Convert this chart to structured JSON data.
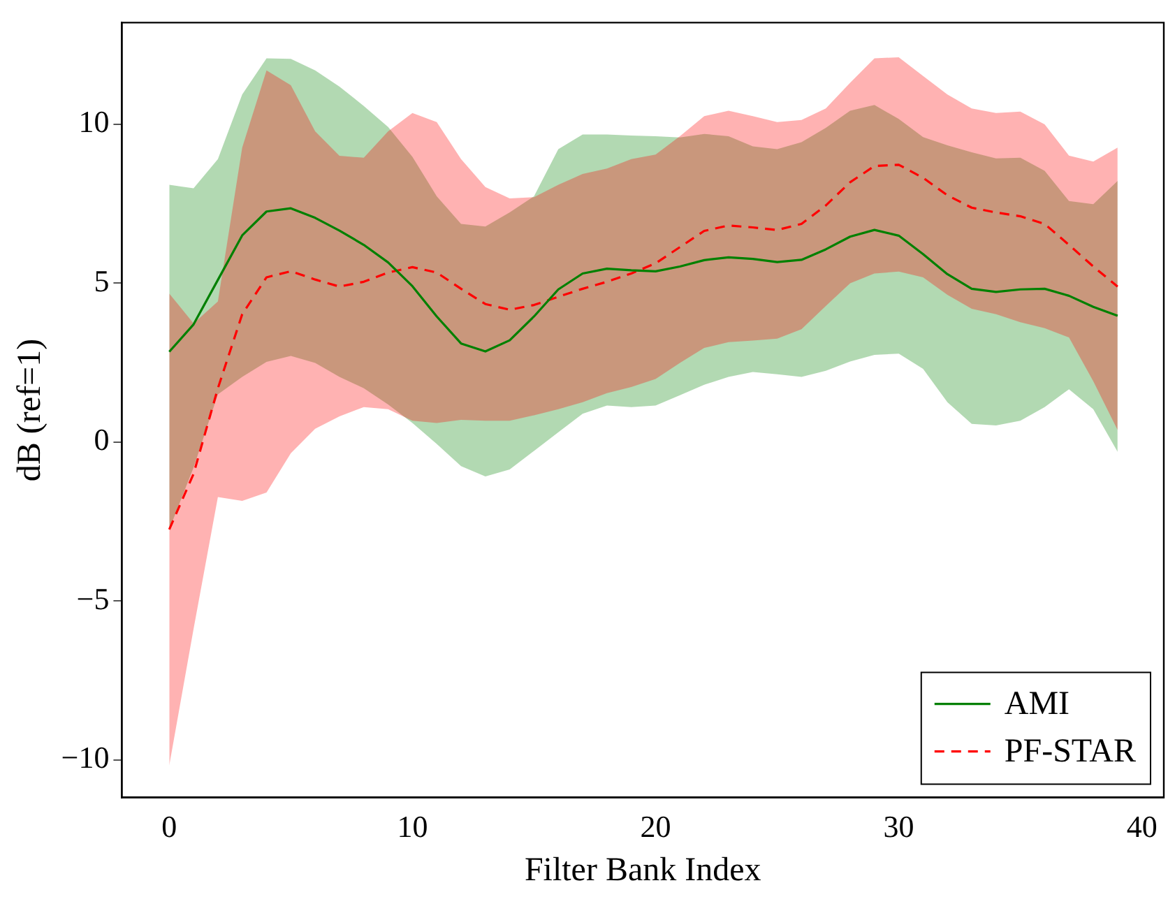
{
  "chart_data": {
    "type": "line",
    "xlabel": "Filter Bank Index",
    "ylabel": "dB (ref=1)",
    "x": [
      0,
      1,
      2,
      3,
      4,
      5,
      6,
      7,
      8,
      9,
      10,
      11,
      12,
      13,
      14,
      15,
      16,
      17,
      18,
      19,
      20,
      21,
      22,
      23,
      24,
      25,
      26,
      27,
      28,
      29,
      30,
      31,
      32,
      33,
      34,
      35,
      36,
      37,
      38,
      39
    ],
    "series": [
      {
        "name": "AMI",
        "color": "#008000",
        "line_style": "solid",
        "values": [
          2.84,
          3.7,
          5.1,
          6.5,
          7.25,
          7.35,
          7.05,
          6.65,
          6.2,
          5.65,
          4.9,
          3.95,
          3.1,
          2.85,
          3.2,
          3.95,
          4.8,
          5.3,
          5.45,
          5.4,
          5.37,
          5.52,
          5.72,
          5.81,
          5.76,
          5.66,
          5.73,
          6.06,
          6.46,
          6.67,
          6.49,
          5.91,
          5.28,
          4.82,
          4.72,
          4.8,
          4.82,
          4.6,
          4.25,
          3.97
        ],
        "upper": [
          8.09,
          7.98,
          8.9,
          10.93,
          12.07,
          12.05,
          11.69,
          11.18,
          10.57,
          9.91,
          8.97,
          7.73,
          6.86,
          6.78,
          7.22,
          7.73,
          9.21,
          9.67,
          9.67,
          9.64,
          9.62,
          9.58,
          9.69,
          9.62,
          9.3,
          9.21,
          9.43,
          9.88,
          10.42,
          10.6,
          10.16,
          9.59,
          9.33,
          9.11,
          8.92,
          8.94,
          8.53,
          7.58,
          7.48,
          8.21
        ],
        "lower": [
          -2.75,
          -0.8,
          1.5,
          2.05,
          2.52,
          2.71,
          2.49,
          2.05,
          1.69,
          1.18,
          0.6,
          -0.06,
          -0.76,
          -1.08,
          -0.86,
          -0.28,
          0.31,
          0.89,
          1.15,
          1.1,
          1.15,
          1.47,
          1.8,
          2.05,
          2.2,
          2.13,
          2.05,
          2.24,
          2.53,
          2.74,
          2.78,
          2.3,
          1.25,
          0.57,
          0.52,
          0.67,
          1.1,
          1.66,
          1.03,
          -0.31
        ]
      },
      {
        "name": "PF-STAR",
        "color": "#ff0000",
        "line_style": "dashed",
        "values": [
          -2.75,
          -1.0,
          1.69,
          4.02,
          5.18,
          5.37,
          5.11,
          4.89,
          5.04,
          5.33,
          5.5,
          5.33,
          4.82,
          4.34,
          4.16,
          4.31,
          4.57,
          4.82,
          5.04,
          5.3,
          5.62,
          6.13,
          6.64,
          6.81,
          6.75,
          6.67,
          6.86,
          7.44,
          8.17,
          8.68,
          8.72,
          8.31,
          7.76,
          7.37,
          7.22,
          7.1,
          6.86,
          6.2,
          5.52,
          4.89
        ],
        "upper": [
          4.67,
          3.73,
          4.42,
          9.26,
          11.69,
          11.22,
          9.77,
          9.0,
          8.94,
          9.77,
          10.35,
          10.06,
          8.9,
          8.02,
          7.66,
          7.7,
          8.09,
          8.43,
          8.6,
          8.9,
          9.04,
          9.62,
          10.25,
          10.42,
          10.25,
          10.06,
          10.13,
          10.49,
          11.3,
          12.07,
          12.1,
          11.51,
          10.93,
          10.49,
          10.35,
          10.39,
          9.99,
          9.01,
          8.82,
          9.26
        ],
        "lower": [
          -10.17,
          -5.88,
          -1.73,
          -1.85,
          -1.59,
          -0.35,
          0.42,
          0.81,
          1.1,
          1.03,
          0.67,
          0.6,
          0.7,
          0.67,
          0.67,
          0.84,
          1.03,
          1.25,
          1.54,
          1.73,
          1.98,
          2.49,
          2.96,
          3.14,
          3.19,
          3.25,
          3.55,
          4.28,
          4.99,
          5.3,
          5.36,
          5.18,
          4.63,
          4.19,
          4.02,
          3.77,
          3.58,
          3.29,
          1.91,
          0.38
        ]
      }
    ],
    "xlim": [
      -1.95,
      40.9
    ],
    "xticks": [
      0,
      10,
      20,
      30,
      40
    ],
    "ylim": [
      -11.18,
      13.19
    ],
    "yticks": [
      {
        "value": -10,
        "label": "−10"
      },
      {
        "value": -5,
        "label": "−5"
      },
      0,
      5,
      10
    ],
    "grid": false,
    "legend": "bottom right",
    "marker": "none"
  }
}
